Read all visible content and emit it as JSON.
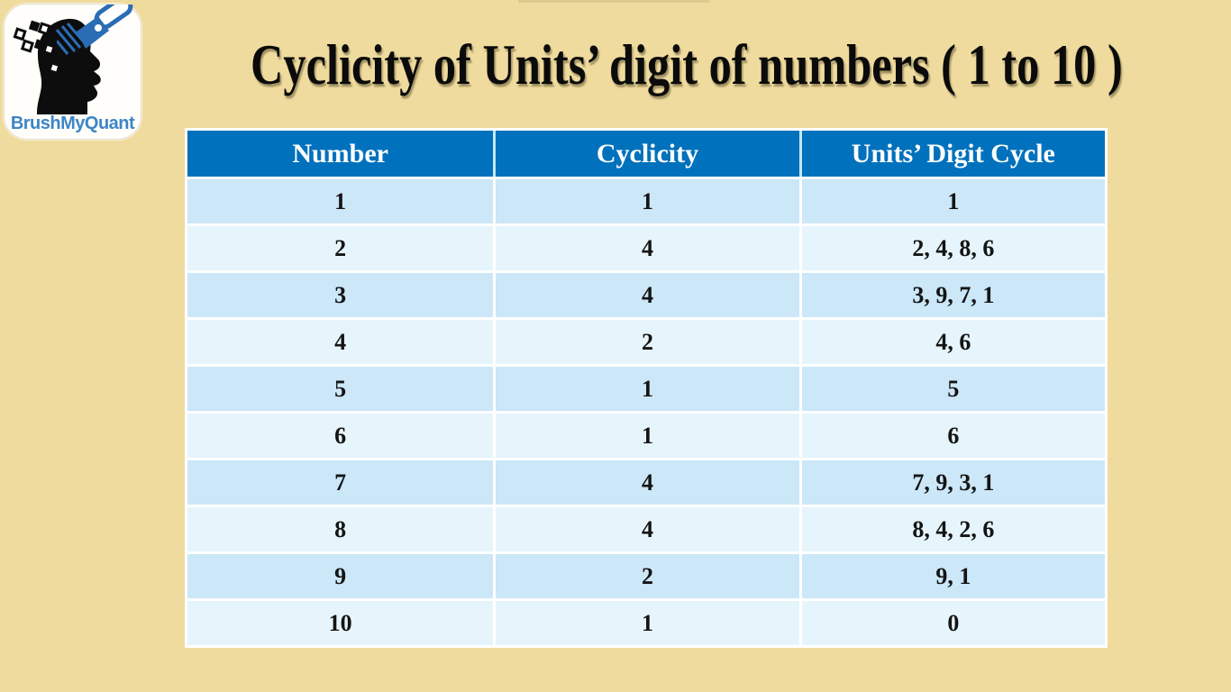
{
  "page": {
    "title": "Cyclicity of Units’ digit of numbers ( 1 to 10 )",
    "background_color": "#efdb9e",
    "title_color": "#0b0b0b"
  },
  "logo": {
    "brand": "BrushMyQuant",
    "brand_color": "#3d85c6",
    "icons": [
      "head-silhouette-icon",
      "paint-brush-icon",
      "pixel-squares-icon"
    ]
  },
  "table": {
    "headers": [
      "Number",
      "Cyclicity",
      "Units’ Digit Cycle"
    ],
    "rows": [
      [
        "1",
        "1",
        "1"
      ],
      [
        "2",
        "4",
        "2, 4, 8, 6"
      ],
      [
        "3",
        "4",
        "3, 9, 7, 1"
      ],
      [
        "4",
        "2",
        "4, 6"
      ],
      [
        "5",
        "1",
        "5"
      ],
      [
        "6",
        "1",
        "6"
      ],
      [
        "7",
        "4",
        "7, 9, 3, 1"
      ],
      [
        "8",
        "4",
        "8, 4, 2, 6"
      ],
      [
        "9",
        "2",
        "9, 1"
      ],
      [
        "10",
        "1",
        "0"
      ]
    ],
    "colors": {
      "header_bg": "#0071bc",
      "header_text": "#ffffff",
      "row_odd": "#cbe7f8",
      "row_even": "#e6f5fc",
      "divider": "#ffffff"
    }
  }
}
